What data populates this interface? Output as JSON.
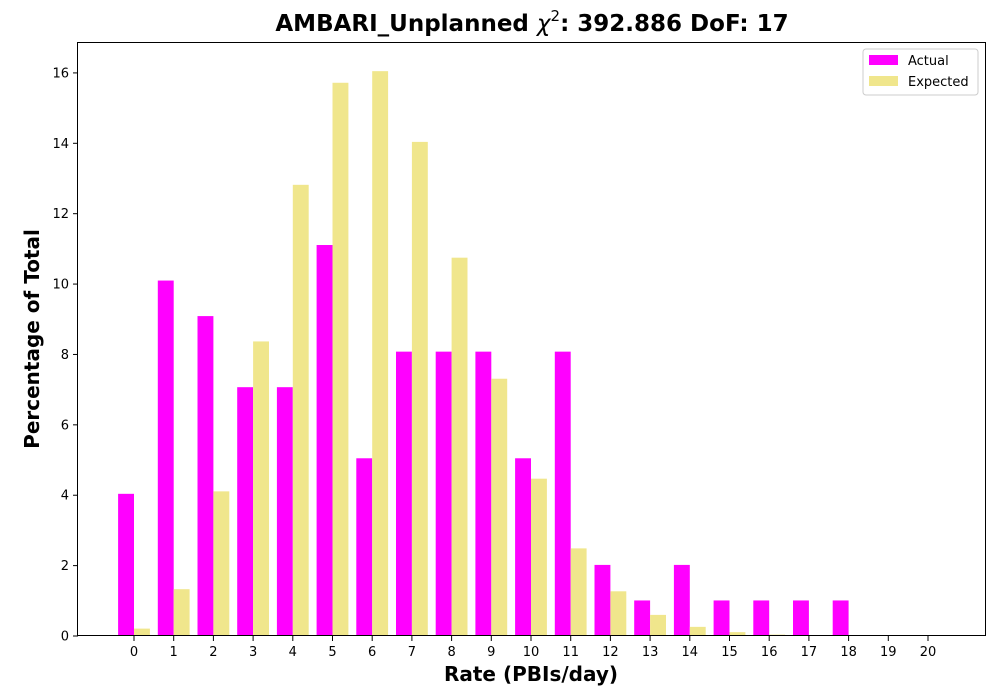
{
  "chart_data": {
    "type": "bar",
    "title": "AMBARI_Unplanned χ²: 392.886 DoF: 17",
    "title_parts": {
      "prefix": "AMBARI_Unplanned ",
      "chi": "χ",
      "sup": "2",
      "suffix": ": 392.886 DoF: 17"
    },
    "xlabel": "Rate (PBIs/day)",
    "ylabel": "Percentage of Total",
    "categories": [
      "0",
      "1",
      "2",
      "3",
      "4",
      "5",
      "6",
      "7",
      "8",
      "9",
      "10",
      "11",
      "12",
      "13",
      "14",
      "15",
      "16",
      "17",
      "18",
      "19",
      "20"
    ],
    "series": [
      {
        "name": "Actual",
        "color": "#ff00ff",
        "values": [
          4.04,
          10.1,
          9.09,
          7.07,
          7.07,
          11.11,
          5.05,
          8.08,
          8.08,
          8.08,
          5.05,
          8.08,
          2.02,
          1.01,
          2.02,
          1.01,
          1.01,
          1.01,
          1.01,
          0,
          0
        ]
      },
      {
        "name": "Expected",
        "color": "#f0e68c",
        "values": [
          0.21,
          1.33,
          4.11,
          8.37,
          12.82,
          15.72,
          16.05,
          14.04,
          10.75,
          7.31,
          4.47,
          2.49,
          1.27,
          0.6,
          0.26,
          0.11,
          0.04,
          0.015,
          0.005,
          0.002,
          0.0005
        ]
      }
    ],
    "ylim": [
      0,
      16.85
    ],
    "yticks": [
      0,
      2,
      4,
      6,
      8,
      10,
      12,
      14,
      16
    ],
    "grid": false,
    "legend": "top-right"
  }
}
